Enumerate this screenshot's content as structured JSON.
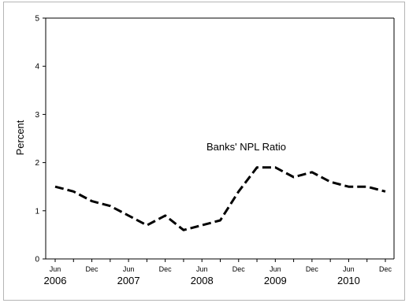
{
  "chart_data": {
    "type": "line",
    "title": "",
    "xlabel": "",
    "ylabel": "Percent",
    "ylim": [
      0,
      5
    ],
    "yticks": [
      "0",
      "1",
      "2",
      "3",
      "4",
      "5"
    ],
    "month_labels": [
      "Jun",
      "Dec",
      "Jun",
      "Dec",
      "Jun",
      "Dec",
      "Jun",
      "Dec",
      "Jun",
      "Dec"
    ],
    "year_labels": [
      "2006",
      "2007",
      "2008",
      "2009",
      "2010"
    ],
    "x": [
      "Jun 2006",
      "Sep 2006",
      "Dec 2006",
      "Mar 2007",
      "Jun 2007",
      "Sep 2007",
      "Dec 2007",
      "Mar 2008",
      "Jun 2008",
      "Sep 2008",
      "Dec 2008",
      "Mar 2009",
      "Jun 2009",
      "Sep 2009",
      "Dec 2009",
      "Mar 2010",
      "Jun 2010",
      "Sep 2010",
      "Dec 2010"
    ],
    "series": [
      {
        "name": "Banks' NPL Ratio",
        "values": [
          1.5,
          1.4,
          1.2,
          1.1,
          0.9,
          0.7,
          0.9,
          0.6,
          0.7,
          0.8,
          1.4,
          1.9,
          1.9,
          1.7,
          1.8,
          1.6,
          1.5,
          1.5,
          1.4
        ]
      }
    ],
    "line_color": "#000000",
    "grid": false
  }
}
